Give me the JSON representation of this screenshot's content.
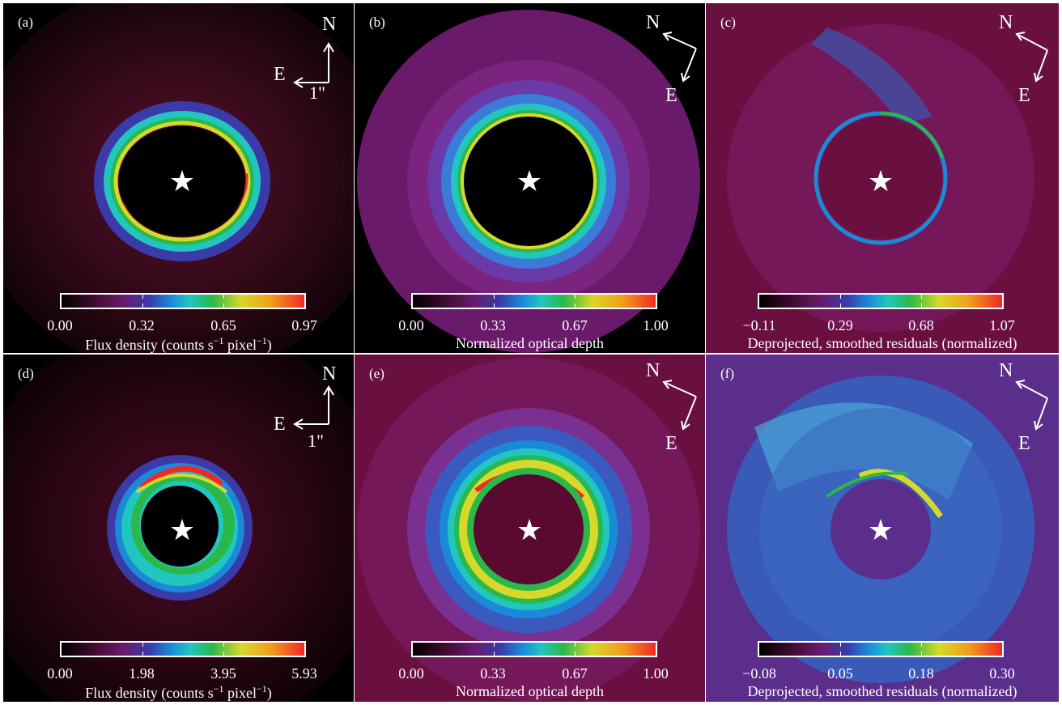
{
  "panels": [
    {
      "id": "a",
      "label": "(a)",
      "compass": "upright",
      "compass_n": "N",
      "compass_e": "E",
      "scale": "1\"",
      "ticks": [
        "0.00",
        "0.32",
        "0.65",
        "0.97"
      ],
      "caption_main": "Flux density (counts s",
      "caption_sup1": "−1",
      "caption_mid": " pixel",
      "caption_sup2": "−1",
      "caption_end": ")"
    },
    {
      "id": "b",
      "label": "(b)",
      "compass": "rotated",
      "compass_n": "N",
      "compass_e": "E",
      "ticks": [
        "0.00",
        "0.33",
        "0.67",
        "1.00"
      ],
      "caption": "Normalized optical depth"
    },
    {
      "id": "c",
      "label": "(c)",
      "compass": "rotated",
      "compass_n": "N",
      "compass_e": "E",
      "ticks": [
        "−0.11",
        "0.29",
        "0.68",
        "1.07"
      ],
      "caption": "Deprojected, smoothed residuals (normalized)"
    },
    {
      "id": "d",
      "label": "(d)",
      "compass": "upright",
      "compass_n": "N",
      "compass_e": "E",
      "scale": "1\"",
      "ticks": [
        "0.00",
        "1.98",
        "3.95",
        "5.93"
      ],
      "caption_main": "Flux density (counts s",
      "caption_sup1": "−1",
      "caption_mid": " pixel",
      "caption_sup2": "−1",
      "caption_end": ")"
    },
    {
      "id": "e",
      "label": "(e)",
      "compass": "rotated",
      "compass_n": "N",
      "compass_e": "E",
      "ticks": [
        "0.00",
        "0.33",
        "0.67",
        "1.00"
      ],
      "caption": "Normalized optical depth"
    },
    {
      "id": "f",
      "label": "(f)",
      "compass": "rotated",
      "compass_n": "N",
      "compass_e": "E",
      "ticks": [
        "−0.08",
        "0.05",
        "0.18",
        "0.30"
      ],
      "caption": "Deprojected, smoothed residuals (normalized)"
    }
  ],
  "star_glyph": "★",
  "colormap": [
    "#000000",
    "#3a0a2a",
    "#6a1a6a",
    "#3a3aa8",
    "#1a8ad8",
    "#22c6c0",
    "#2ab84a",
    "#d8d82a",
    "#f0a01a",
    "#f02828"
  ]
}
